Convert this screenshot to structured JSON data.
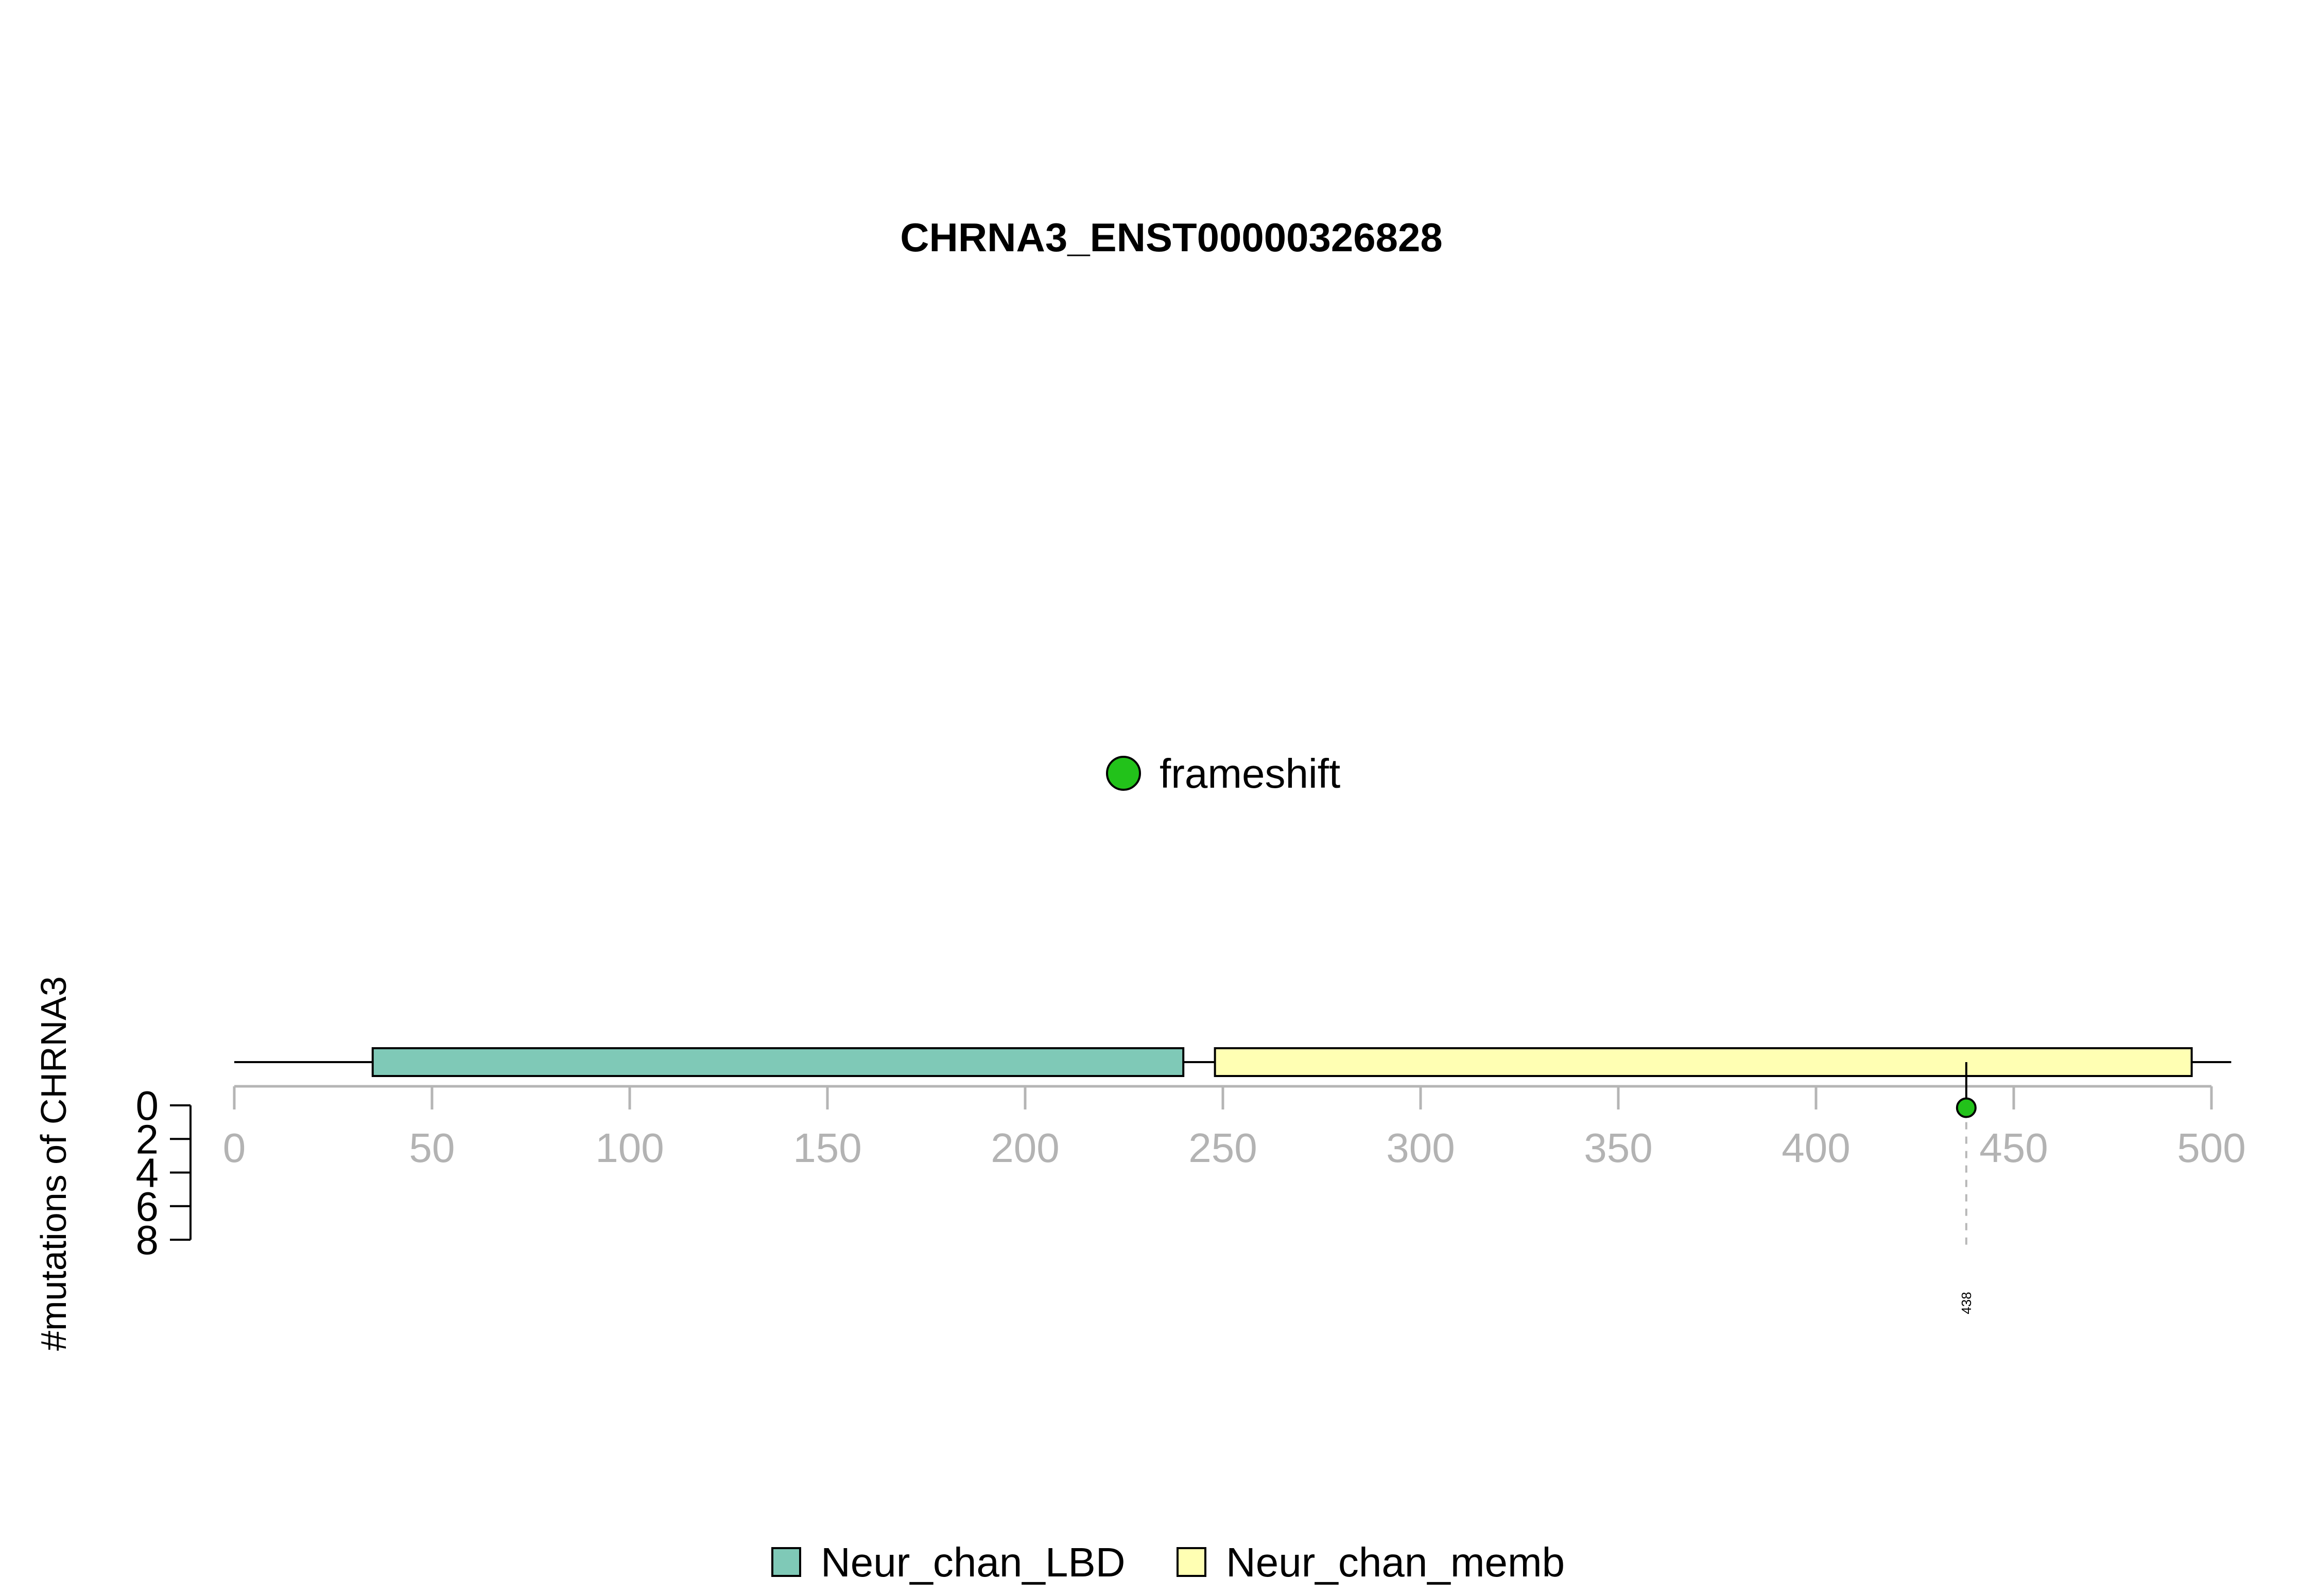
{
  "chart_data": {
    "type": "lollipop",
    "title": "CHRNA3_ENST00000326828",
    "ylabel": "#mutations of CHRNA3",
    "x_ticks": [
      0,
      50,
      100,
      150,
      200,
      250,
      300,
      350,
      400,
      450,
      500
    ],
    "y_ticks": [
      0,
      2,
      4,
      6,
      8
    ],
    "xlim": [
      0,
      500
    ],
    "ylim": [
      0,
      8
    ],
    "protein_length": 505,
    "domains": [
      {
        "name": "Neur_chan_LBD",
        "start": 35,
        "end": 240,
        "color": "#7fc9b7"
      },
      {
        "name": "Neur_chan_memb",
        "start": 248,
        "end": 495,
        "color": "#ffffb3"
      }
    ],
    "mutations": [
      {
        "position": 438,
        "count": 1,
        "type": "frameshift",
        "label": "438",
        "color": "#22c21a"
      }
    ],
    "mutation_legend": [
      {
        "label": "frameshift",
        "color": "#22c21a"
      }
    ],
    "domain_legend": [
      {
        "label": "Neur_chan_LBD",
        "color": "#7fc9b7"
      },
      {
        "label": "Neur_chan_memb",
        "color": "#ffffb3"
      }
    ]
  }
}
